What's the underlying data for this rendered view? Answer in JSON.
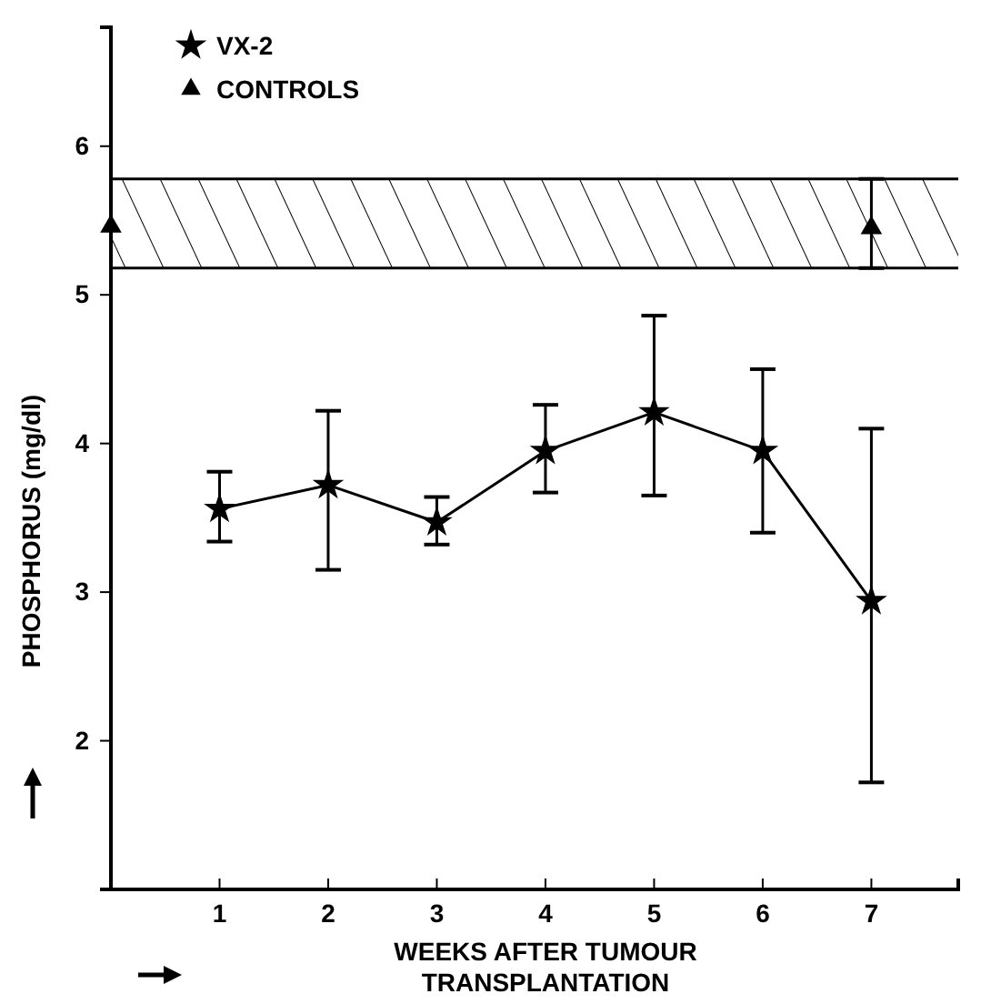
{
  "chart_data": {
    "type": "line",
    "xlabel": "WEEKS AFTER TUMOUR TRANSPLANTATION",
    "ylabel": "PHOSPHORUS (mg/dl)",
    "xlim": [
      0,
      7.8
    ],
    "ylim": [
      1,
      6.8
    ],
    "xticks": [
      1,
      2,
      3,
      4,
      5,
      6,
      7
    ],
    "yticks": [
      2,
      3,
      4,
      5,
      6
    ],
    "grid": false,
    "legend": "top left",
    "bands": [
      {
        "axis": "y",
        "from": 5.18,
        "to": 5.78,
        "color": "#000000"
      }
    ],
    "series": [
      {
        "name": "VX-2",
        "color": "#000000",
        "marker": "star",
        "line_style": "solid",
        "x": [
          1,
          2,
          3,
          4,
          5,
          6,
          7
        ],
        "values": [
          3.56,
          3.72,
          3.47,
          3.95,
          4.21,
          3.95,
          2.94
        ],
        "errors": [
          [
            3.34,
            3.81
          ],
          [
            3.15,
            4.22
          ],
          [
            3.32,
            3.64
          ],
          [
            3.67,
            4.26
          ],
          [
            3.65,
            4.86
          ],
          [
            3.4,
            4.5
          ],
          [
            1.72,
            4.1
          ]
        ]
      },
      {
        "name": "CONTROLS",
        "type": "scatter",
        "color": "#000000",
        "marker": "triangle",
        "x": [
          0,
          7
        ],
        "values": [
          5.46,
          5.45
        ],
        "errors": [
          null,
          [
            5.18,
            5.78
          ]
        ]
      }
    ]
  }
}
